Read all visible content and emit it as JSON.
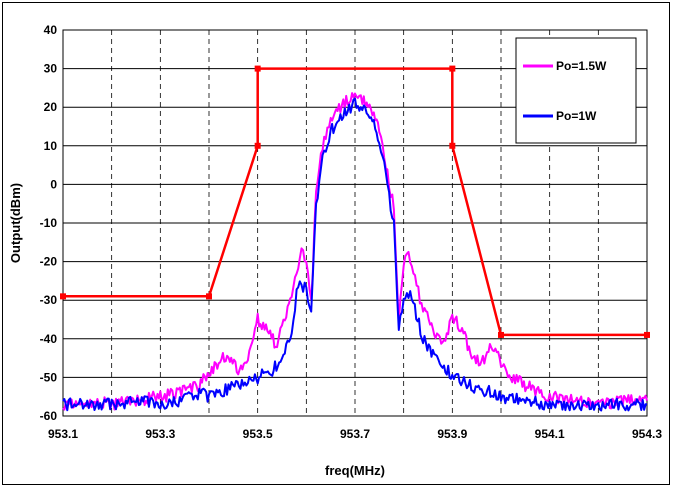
{
  "chart_data": {
    "type": "line",
    "xlabel": "freq(MHz)",
    "ylabel": "Output(dBm)",
    "xlim": [
      953.1,
      954.3
    ],
    "ylim": [
      -60,
      40
    ],
    "x_ticks": [
      "953.1",
      "953.3",
      "953.5",
      "953.7",
      "953.9",
      "954.1",
      "954.3"
    ],
    "y_ticks": [
      "40",
      "30",
      "20",
      "10",
      "0",
      "-10",
      "-20",
      "-30",
      "-40",
      "-50",
      "-60"
    ],
    "grid": true,
    "legend_position": "top-right",
    "series": [
      {
        "name": "Po=1.5W",
        "color": "#ff00ff",
        "x": [
          953.1,
          953.15,
          953.2,
          953.25,
          953.3,
          953.34,
          953.38,
          953.4,
          953.42,
          953.44,
          953.46,
          953.48,
          953.5,
          953.52,
          953.54,
          953.55,
          953.57,
          953.58,
          953.59,
          953.6,
          953.61,
          953.62,
          953.63,
          953.64,
          953.65,
          953.67,
          953.7,
          953.73,
          953.75,
          953.76,
          953.77,
          953.78,
          953.79,
          953.8,
          953.81,
          953.82,
          953.83,
          953.84,
          953.86,
          953.88,
          953.9,
          953.92,
          953.94,
          953.96,
          953.98,
          954.0,
          954.02,
          954.05,
          954.1,
          954.15,
          954.2,
          954.25,
          954.3
        ],
        "y": [
          -57,
          -56,
          -57,
          -56,
          -55,
          -54,
          -52,
          -49,
          -46,
          -44,
          -48,
          -45,
          -35,
          -38,
          -42,
          -37,
          -29,
          -22,
          -17,
          -19,
          -31,
          -2,
          8,
          13,
          16,
          20,
          24,
          20,
          15,
          8,
          0,
          -6,
          -35,
          -20,
          -18,
          -22,
          -28,
          -32,
          -38,
          -42,
          -34,
          -38,
          -44,
          -46,
          -42,
          -46,
          -50,
          -52,
          -55,
          -56,
          -57,
          -56,
          -56
        ]
      },
      {
        "name": "Po=1W",
        "color": "#0000ff",
        "x": [
          953.1,
          953.15,
          953.2,
          953.25,
          953.3,
          953.34,
          953.38,
          953.4,
          953.44,
          953.48,
          953.5,
          953.53,
          953.55,
          953.57,
          953.58,
          953.59,
          953.6,
          953.61,
          953.62,
          953.63,
          953.64,
          953.65,
          953.67,
          953.7,
          953.73,
          953.75,
          953.76,
          953.77,
          953.78,
          953.79,
          953.8,
          953.81,
          953.82,
          953.84,
          953.86,
          953.88,
          953.9,
          953.93,
          953.96,
          954.0,
          954.05,
          954.1,
          954.15,
          954.2,
          954.25,
          954.3
        ],
        "y": [
          -57,
          -57,
          -57,
          -56,
          -57,
          -56,
          -54,
          -55,
          -53,
          -51,
          -50,
          -48,
          -46,
          -38,
          -28,
          -26,
          -27,
          -33,
          -6,
          5,
          10,
          14,
          17,
          21,
          18,
          12,
          5,
          -3,
          -10,
          -38,
          -30,
          -28,
          -31,
          -40,
          -44,
          -48,
          -49,
          -52,
          -53,
          -55,
          -56,
          -57,
          -57,
          -57,
          -57,
          -57
        ]
      },
      {
        "name": "",
        "color": "#ff0000",
        "x": [
          953.1,
          953.4,
          953.5,
          953.5,
          953.9,
          953.9,
          954.0,
          954.3
        ],
        "y": [
          -29,
          -29,
          10,
          30,
          30,
          10,
          -39,
          -39
        ]
      }
    ]
  }
}
